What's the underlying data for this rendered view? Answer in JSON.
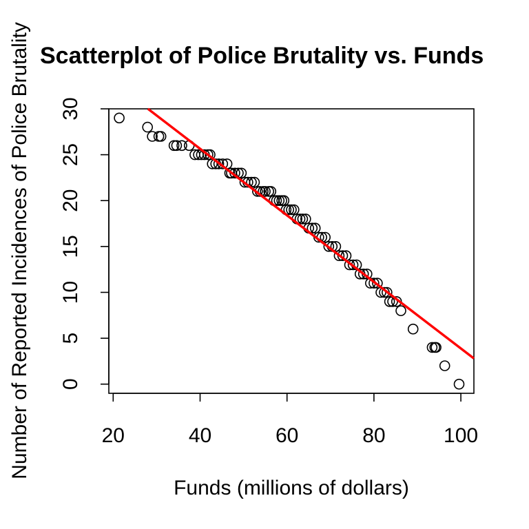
{
  "chart_data": {
    "type": "scatter",
    "title": "Scatterplot of Police Brutality vs. Funds",
    "xlabel": "Funds (millions of dollars)",
    "ylabel": "Number of Reported Incidences of Police Brutality",
    "xlim": [
      19,
      103
    ],
    "ylim": [
      -1,
      30
    ],
    "xticks": [
      20,
      40,
      60,
      80,
      100
    ],
    "yticks": [
      0,
      5,
      10,
      15,
      20,
      25,
      30
    ],
    "grid": false,
    "legend": "none",
    "marker_color": "#000000",
    "line_color": "#ff0000",
    "fit_line": {
      "x": [
        28,
        103
      ],
      "y": [
        30,
        2.8
      ]
    },
    "points": {
      "x": [
        21.4,
        27.9,
        29.0,
        30.5,
        31.0,
        34.0,
        34.6,
        35.8,
        37.5,
        38.8,
        39.6,
        40.3,
        41.0,
        41.8,
        42.3,
        42.8,
        43.6,
        44.3,
        45.2,
        46.2,
        46.8,
        47.2,
        48.0,
        48.8,
        49.5,
        50.3,
        51.0,
        51.8,
        52.5,
        53.2,
        53.8,
        54.5,
        55.0,
        55.8,
        56.3,
        57.0,
        57.6,
        58.2,
        58.8,
        59.3,
        59.8,
        60.4,
        61.0,
        61.6,
        62.3,
        63.0,
        63.6,
        64.3,
        65.0,
        65.8,
        66.5,
        67.3,
        68.0,
        68.8,
        69.6,
        70.4,
        71.2,
        72.0,
        72.8,
        73.6,
        74.4,
        75.2,
        76.0,
        76.8,
        77.6,
        78.4,
        79.2,
        80.0,
        80.8,
        81.6,
        82.4,
        83.0,
        83.6,
        84.3,
        85.2,
        86.2,
        89.0,
        93.4,
        94.0,
        94.3,
        96.3,
        99.6
      ],
      "y": [
        29,
        28,
        27,
        27,
        27,
        26,
        26,
        26,
        26,
        25,
        25,
        25,
        25,
        25,
        25,
        24,
        24,
        24,
        24,
        24,
        23,
        23,
        23,
        23,
        23,
        22,
        22,
        22,
        22,
        21,
        21,
        21,
        21,
        21,
        21,
        20,
        20,
        20,
        20,
        20,
        19,
        19,
        19,
        19,
        18,
        18,
        18,
        18,
        17,
        17,
        17,
        16,
        16,
        16,
        15,
        15,
        15,
        14,
        14,
        14,
        13,
        13,
        13,
        12,
        12,
        12,
        11,
        11,
        11,
        10,
        10,
        10,
        9,
        9,
        9,
        8,
        6,
        4,
        4,
        4,
        2,
        0
      ]
    }
  }
}
